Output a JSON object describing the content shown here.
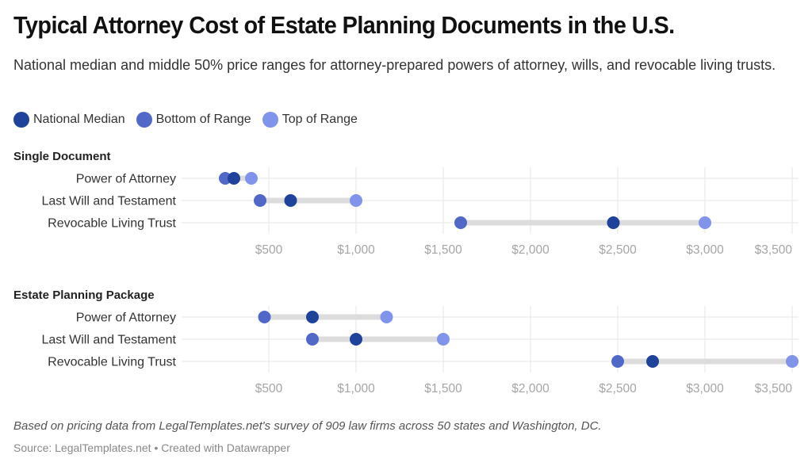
{
  "header": {
    "title": "Typical Attorney Cost of Estate Planning Documents in the U.S.",
    "subtitle": "National median and middle 50% price ranges for attorney-prepared powers of attorney, wills, and revocable living trusts."
  },
  "legend": [
    {
      "label": "National Median",
      "color": "#1f439b"
    },
    {
      "label": "Bottom of Range",
      "color": "#5168c8"
    },
    {
      "label": "Top of Range",
      "color": "#7f94ea"
    }
  ],
  "footer": {
    "notes": "Based on pricing data from LegalTemplates.net's survey of 909 law firms across 50 states and Washington, DC.",
    "source": "Source: LegalTemplates.net • Created with Datawrapper"
  },
  "chart_data": {
    "type": "range-dot",
    "title": "Typical Attorney Cost of Estate Planning Documents in the U.S.",
    "xlabel": "",
    "ylabel": "",
    "xlim": [
      0,
      3500
    ],
    "x_ticks": [
      500,
      1000,
      1500,
      2000,
      2500,
      3000,
      3500
    ],
    "x_tick_labels": [
      "$500",
      "$1,000",
      "$1,500",
      "$2,000",
      "$2,500",
      "$3,000",
      "$3,500"
    ],
    "grid": true,
    "legend_position": "top-left",
    "series_names": [
      "National Median",
      "Bottom of Range",
      "Top of Range"
    ],
    "panels": [
      {
        "title": "Single Document",
        "categories": [
          "Power of Attorney",
          "Last Will and Testament",
          "Revocable Living Trust"
        ],
        "bottom": [
          250,
          450,
          1600
        ],
        "median": [
          300,
          625,
          2475
        ],
        "top": [
          400,
          1000,
          3000
        ]
      },
      {
        "title": "Estate Planning Package",
        "categories": [
          "Power of Attorney",
          "Last Will and Testament",
          "Revocable Living Trust"
        ],
        "bottom": [
          475,
          750,
          2500
        ],
        "median": [
          750,
          1000,
          2700
        ],
        "top": [
          1175,
          1500,
          3500
        ]
      }
    ]
  }
}
